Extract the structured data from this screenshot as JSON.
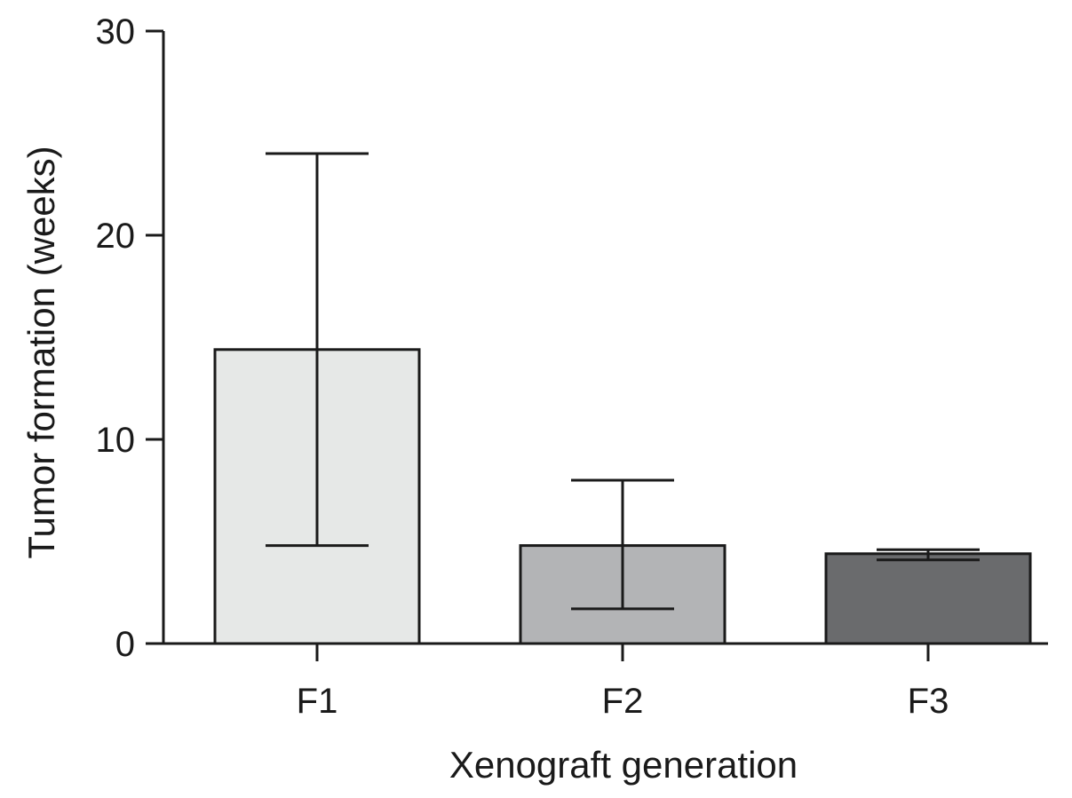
{
  "chart_data": {
    "type": "bar",
    "categories": [
      "F1",
      "F2",
      "F3"
    ],
    "values": [
      14.4,
      4.8,
      4.4
    ],
    "error_bars": [
      {
        "low": 4.8,
        "high": 24.0
      },
      {
        "low": 1.7,
        "high": 8.0
      },
      {
        "low": 4.1,
        "high": 4.6
      }
    ],
    "bar_colors": [
      "#e6e8e7",
      "#b3b4b6",
      "#6a6b6d"
    ],
    "xlabel": "Xenograft generation",
    "ylabel": "Tumor formation (weeks)",
    "ylim": [
      0,
      30
    ],
    "yticks": [
      0,
      10,
      20,
      30
    ],
    "grid": false,
    "legend": "none"
  }
}
